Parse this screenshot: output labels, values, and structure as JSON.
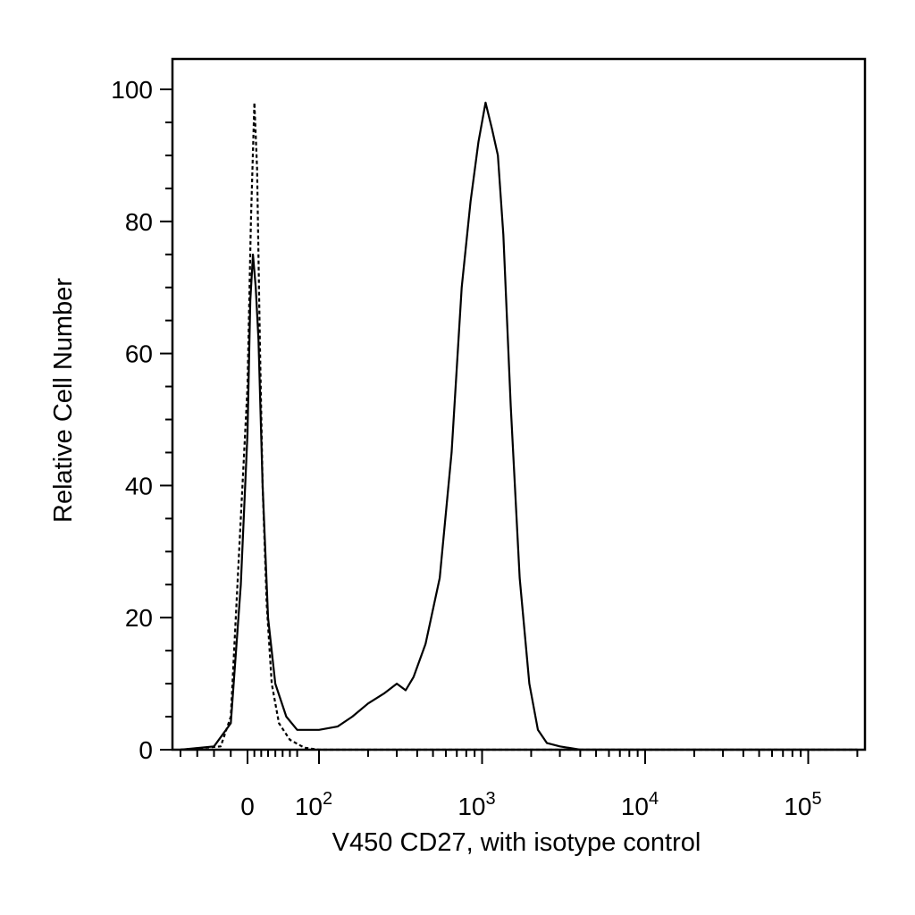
{
  "chart_data": {
    "type": "line",
    "title": "",
    "xlabel": "V450 CD27, with isotype control",
    "ylabel": "Relative Cell Number",
    "x_scale": "biexponential",
    "y_scale": "linear",
    "ylim": [
      0,
      100
    ],
    "y_ticks": [
      {
        "value": 0,
        "label": "0"
      },
      {
        "value": 20,
        "label": "20"
      },
      {
        "value": 40,
        "label": "40"
      },
      {
        "value": 60,
        "label": "60"
      },
      {
        "value": 80,
        "label": "80"
      },
      {
        "value": 100,
        "label": "100"
      }
    ],
    "x_ticks": [
      {
        "value": 0,
        "base": "0",
        "exp": ""
      },
      {
        "value": 100,
        "base": "10",
        "exp": "2"
      },
      {
        "value": 1000,
        "base": "10",
        "exp": "3"
      },
      {
        "value": 10000,
        "base": "10",
        "exp": "4"
      },
      {
        "value": 100000,
        "base": "10",
        "exp": "5"
      }
    ],
    "grid": false,
    "legend": "none",
    "series": [
      {
        "style": "solid",
        "color": "#000000",
        "points": [
          [
            -40,
            0
          ],
          [
            -20,
            0.5
          ],
          [
            -10,
            4
          ],
          [
            -4,
            25
          ],
          [
            0,
            48
          ],
          [
            4,
            68
          ],
          [
            8,
            75
          ],
          [
            12,
            70
          ],
          [
            16,
            62
          ],
          [
            22,
            40
          ],
          [
            30,
            20
          ],
          [
            40,
            10
          ],
          [
            55,
            5
          ],
          [
            70,
            3
          ],
          [
            100,
            3
          ],
          [
            130,
            3.5
          ],
          [
            160,
            5
          ],
          [
            200,
            7
          ],
          [
            250,
            8.5
          ],
          [
            300,
            10
          ],
          [
            340,
            9
          ],
          [
            380,
            11
          ],
          [
            450,
            16
          ],
          [
            550,
            26
          ],
          [
            650,
            45
          ],
          [
            750,
            70
          ],
          [
            850,
            83
          ],
          [
            950,
            92
          ],
          [
            1050,
            98
          ],
          [
            1150,
            94
          ],
          [
            1250,
            90
          ],
          [
            1350,
            78
          ],
          [
            1500,
            52
          ],
          [
            1700,
            26
          ],
          [
            1950,
            10
          ],
          [
            2200,
            3
          ],
          [
            2500,
            1
          ],
          [
            3000,
            0.5
          ],
          [
            4000,
            0
          ],
          [
            200000,
            0
          ]
        ]
      },
      {
        "style": "dashed",
        "color": "#000000",
        "points": [
          [
            -40,
            0
          ],
          [
            -16,
            0.5
          ],
          [
            -10,
            5
          ],
          [
            -5,
            30
          ],
          [
            0,
            55
          ],
          [
            5,
            80
          ],
          [
            10,
            98
          ],
          [
            14,
            88
          ],
          [
            18,
            62
          ],
          [
            22,
            40
          ],
          [
            28,
            22
          ],
          [
            35,
            10
          ],
          [
            45,
            4
          ],
          [
            60,
            1.5
          ],
          [
            80,
            0.3
          ],
          [
            100,
            0
          ],
          [
            200000,
            0
          ]
        ]
      }
    ]
  }
}
